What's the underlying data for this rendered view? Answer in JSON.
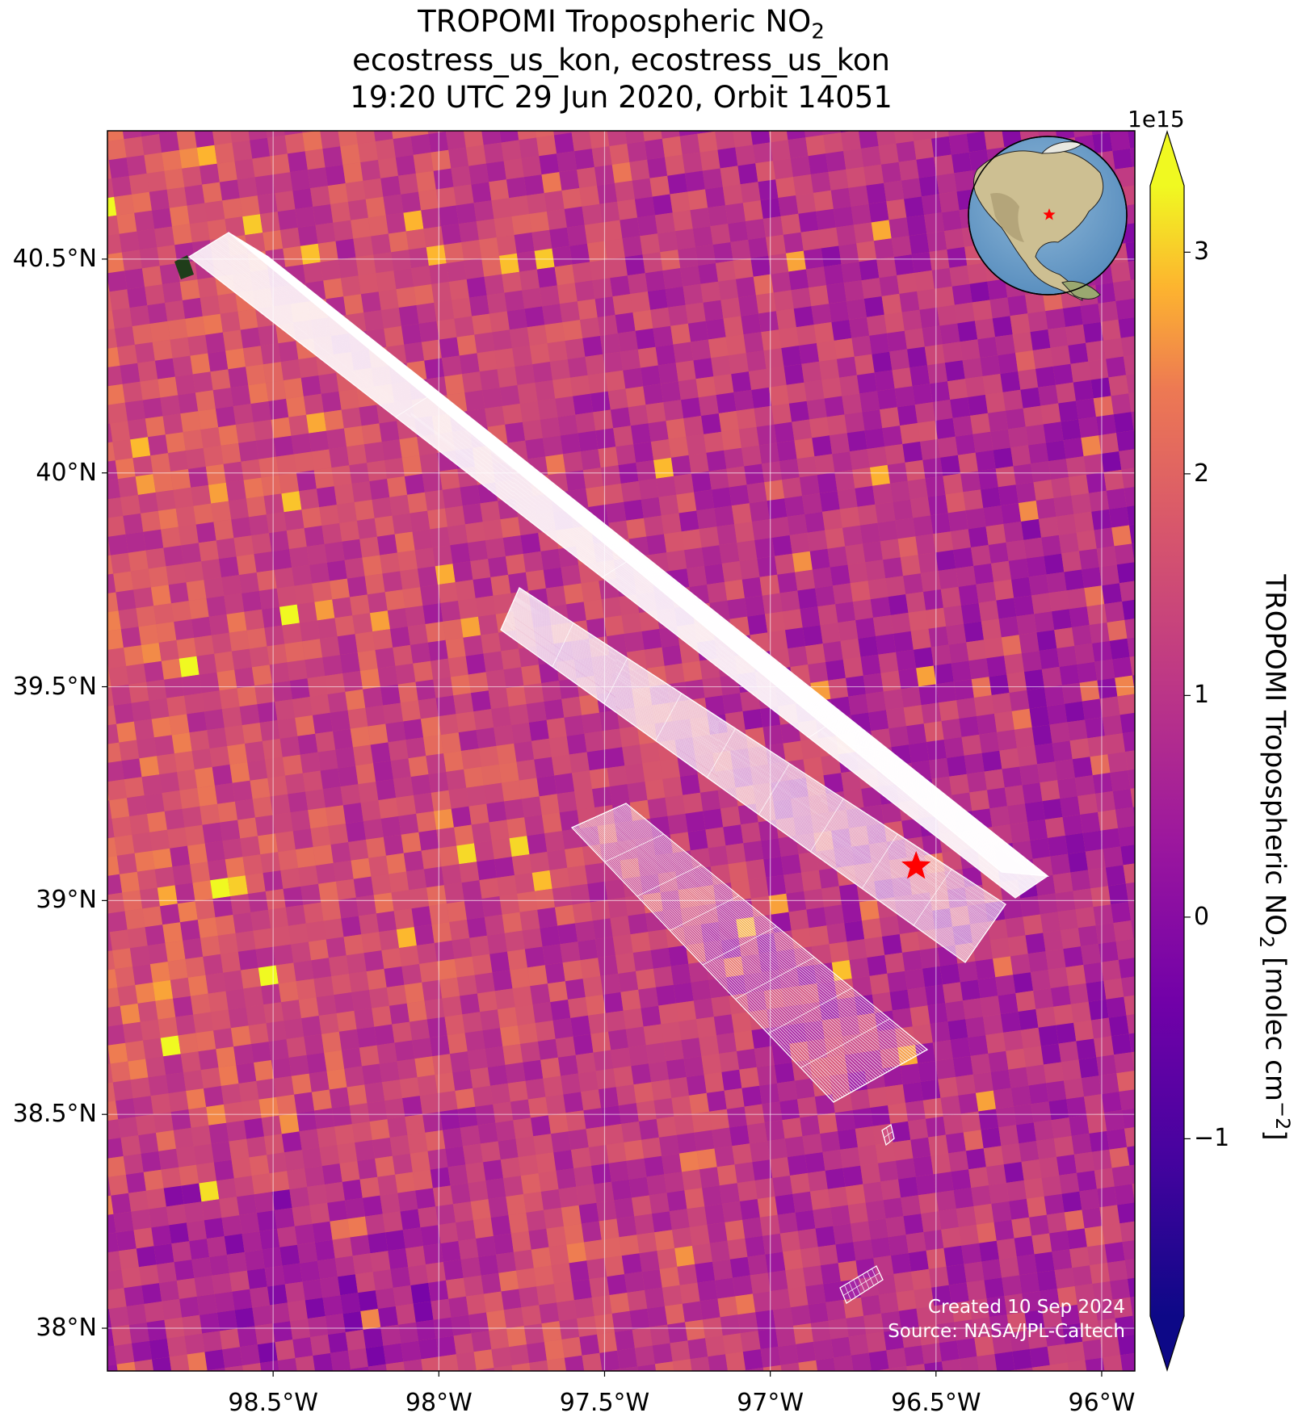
{
  "title": {
    "line1_prefix": "TROPOMI Tropospheric NO",
    "line1_sub": "2",
    "line2": "ecostress_us_kon, ecostress_us_kon",
    "line3": "19:20 UTC 29 Jun 2020, Orbit 14051"
  },
  "map": {
    "lon_range": [
      -99.0,
      -95.9
    ],
    "lat_range": [
      37.9,
      40.8
    ],
    "lat_ticks": [
      "40.5°N",
      "40°N",
      "39.5°N",
      "39°N",
      "38.5°N",
      "38°N"
    ],
    "lat_tick_values": [
      40.5,
      40.0,
      39.5,
      39.0,
      38.5,
      38.0
    ],
    "lon_ticks": [
      "98.5°W",
      "98°W",
      "97.5°W",
      "97°W",
      "96.5°W",
      "96°W"
    ],
    "lon_tick_values": [
      -98.5,
      -98.0,
      -97.5,
      -97.0,
      -96.5,
      -96.0
    ],
    "gridlines": true,
    "site_marker": {
      "lon": -96.56,
      "lat": 39.08,
      "color": "#ff0000",
      "icon": "star"
    },
    "overlay_color": "#ffffff",
    "inset_globe": {
      "placement": "top-right",
      "marker_icon": "star",
      "marker_color": "#ff0000"
    }
  },
  "colorbar": {
    "colormap": "plasma",
    "exponent_label": "1e15",
    "ticks": [
      "3",
      "2",
      "1",
      "0",
      "−1"
    ],
    "tick_values": [
      3,
      2,
      1,
      0,
      -1
    ],
    "range": [
      -1.8,
      3.3
    ],
    "label_prefix": "TROPOMI Tropospheric NO",
    "label_sub": "2",
    "label_mid": " [molec cm",
    "label_sup": "−2",
    "label_suffix": "]"
  },
  "credits": {
    "created": "Created 10 Sep 2024",
    "source": "Source: NASA/JPL-Caltech"
  }
}
